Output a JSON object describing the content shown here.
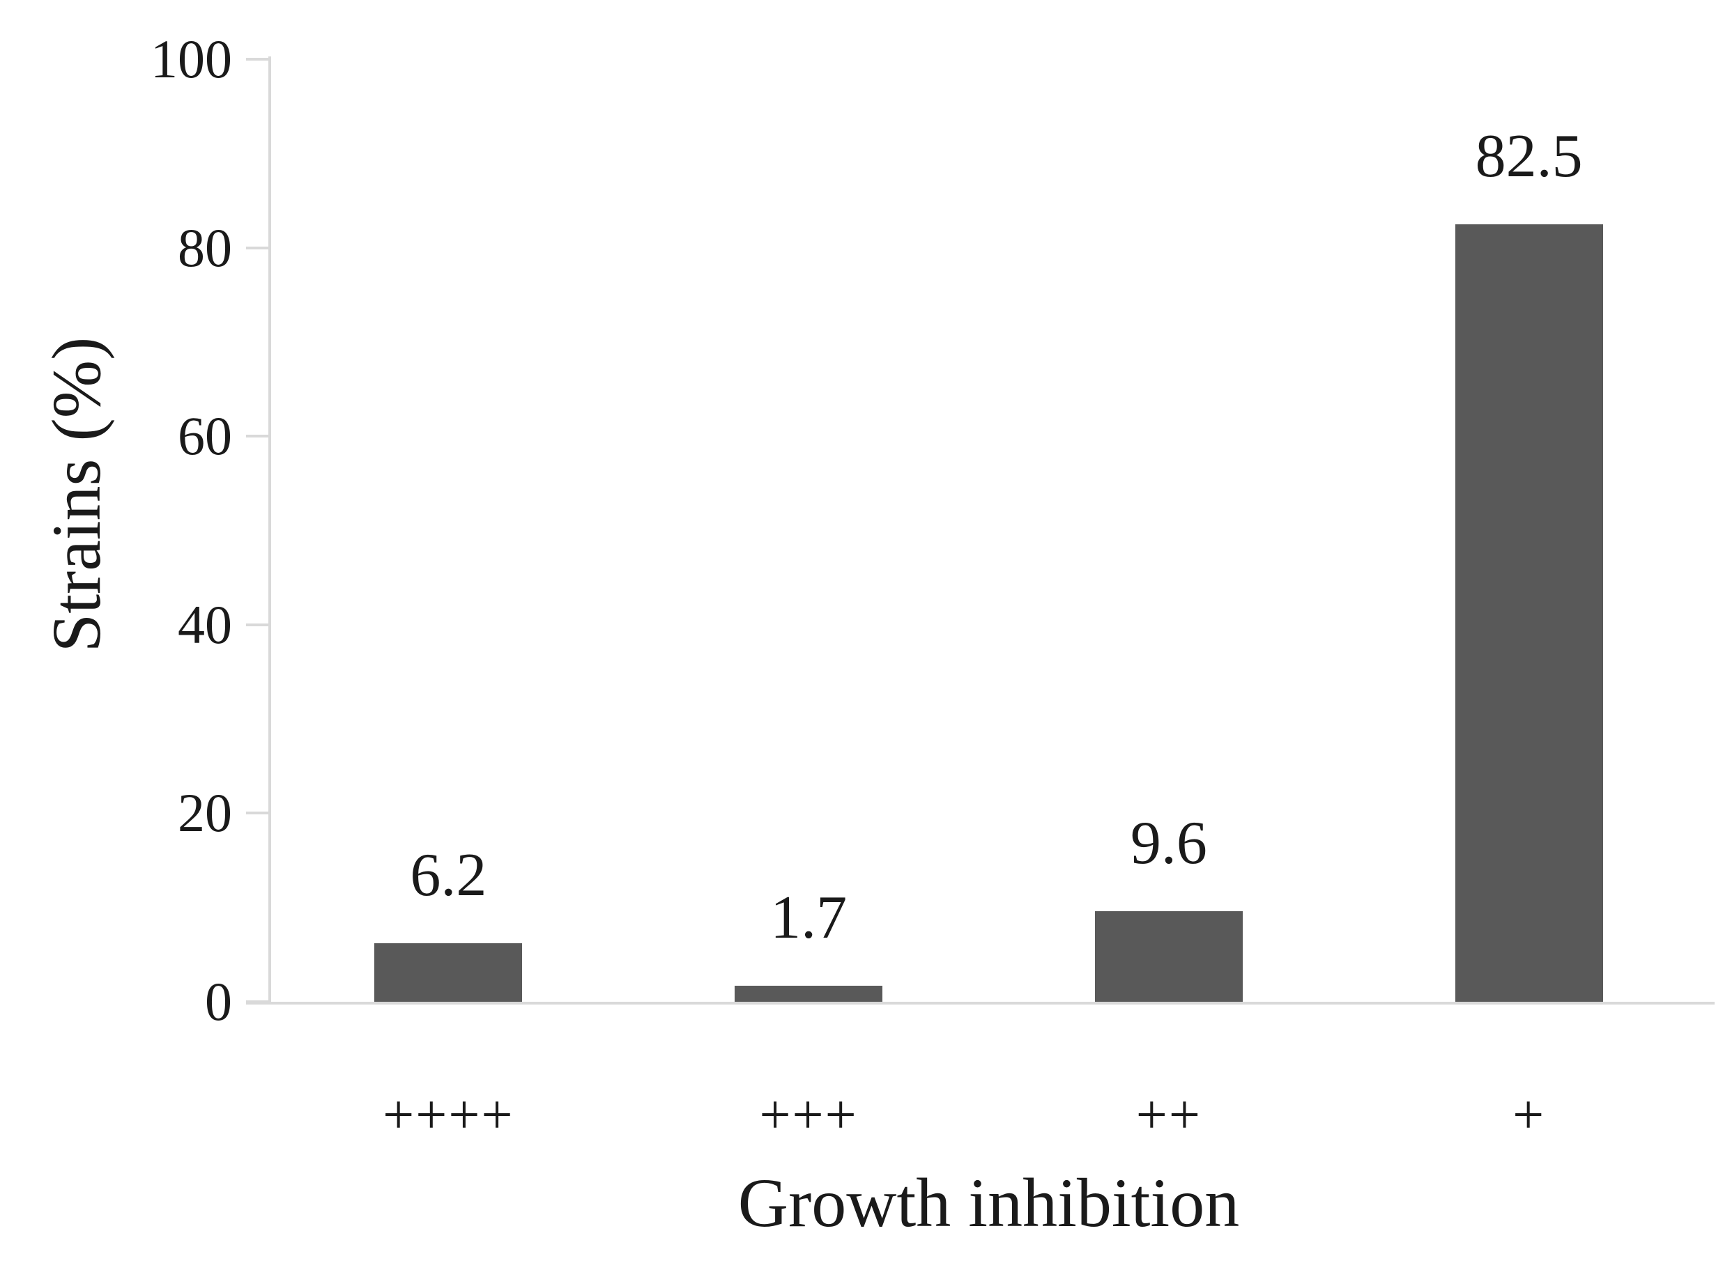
{
  "chart_data": {
    "type": "bar",
    "categories": [
      "++++",
      "+++",
      "++",
      "+"
    ],
    "values": [
      6.2,
      1.7,
      9.6,
      82.5
    ],
    "data_labels": [
      "6.2",
      "1.7",
      "9.6",
      "82.5"
    ],
    "title": "",
    "xlabel": "Growth inhibition",
    "ylabel": "Strains (%)",
    "ylim": [
      0,
      100
    ],
    "yticks": [
      0,
      20,
      40,
      60,
      80,
      100
    ],
    "grid": false,
    "legend": false,
    "bar_color": "#595959",
    "axis_color": "#d9d9d9",
    "text_color": "#1a1a1a"
  }
}
